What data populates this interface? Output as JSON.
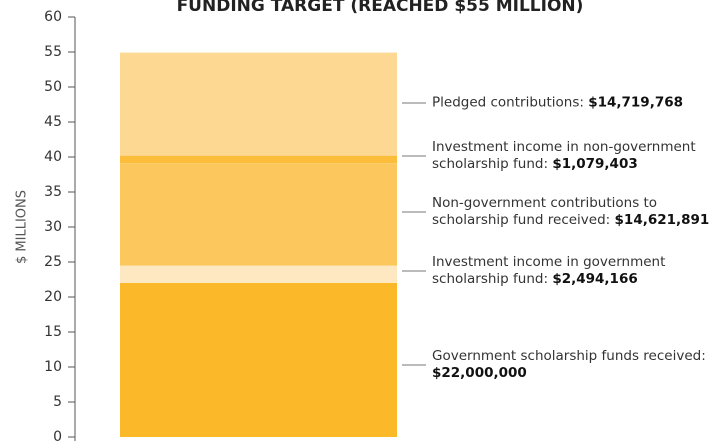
{
  "chart_data": {
    "type": "stacked_bar",
    "title": "FUNDING TARGET (REACHED $55 MILLION)",
    "y_label": "$ MILLIONS",
    "ylim": [
      0,
      60
    ],
    "yticks": [
      0,
      5,
      10,
      15,
      20,
      25,
      30,
      35,
      40,
      45,
      50,
      55,
      60
    ],
    "series": [
      {
        "name": "Government scholarship funds received:",
        "color": "#fbb829",
        "values": [
          22.0
        ],
        "value_labels": [
          "$22,000,000"
        ]
      },
      {
        "name": "Investment income in government scholarship fund:",
        "color": "#fde8c2",
        "values": [
          2.494166
        ],
        "value_labels": [
          "$2,494,166"
        ]
      },
      {
        "name": "Non-government contributions to scholarship fund received:",
        "color": "#fcc75c",
        "values": [
          14.621891
        ],
        "value_labels": [
          "$14,621,891"
        ]
      },
      {
        "name": "Investment income in non-government scholarship fund:",
        "color": "#fbbd3a",
        "values": [
          1.079403
        ],
        "value_labels": [
          "$1,079,403"
        ]
      },
      {
        "name": "Pledged contributions:",
        "color": "#fdd893",
        "values": [
          14.719768
        ],
        "value_labels": [
          "$14,719,768"
        ]
      }
    ]
  }
}
